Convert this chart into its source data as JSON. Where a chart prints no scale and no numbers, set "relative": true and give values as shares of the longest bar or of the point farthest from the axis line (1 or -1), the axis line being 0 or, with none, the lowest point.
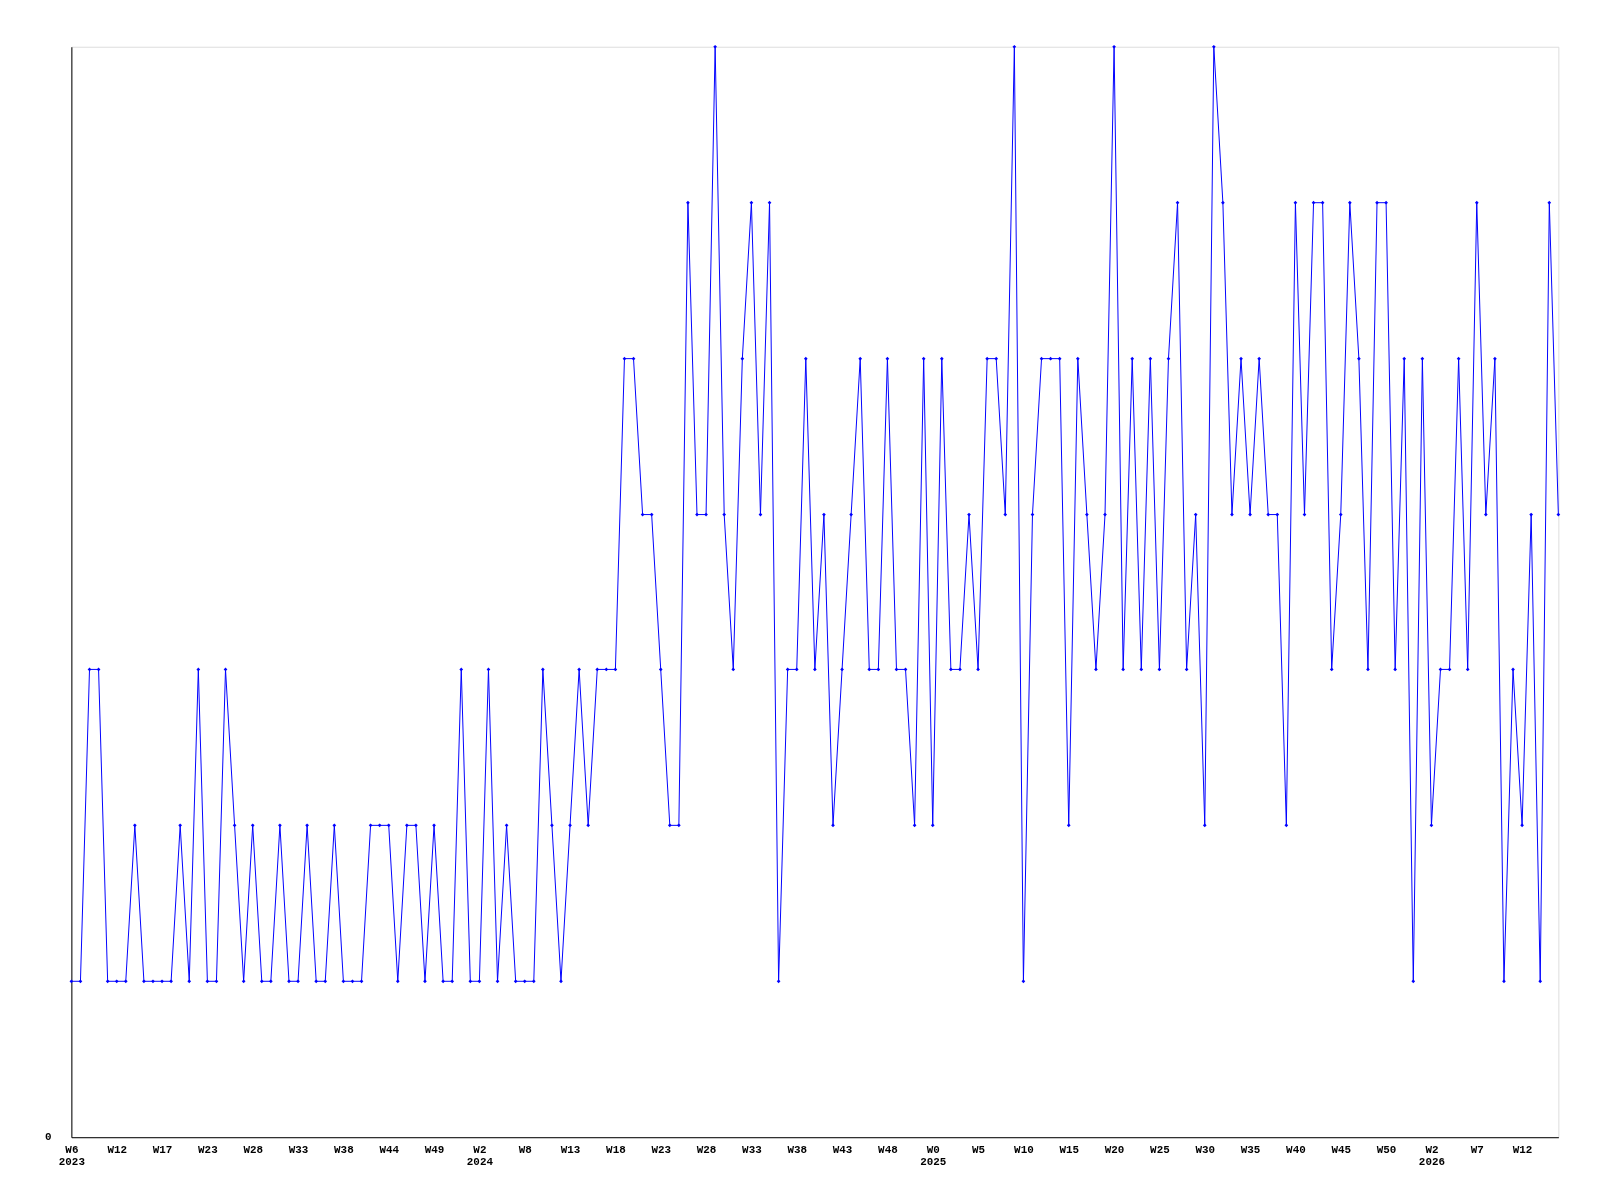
{
  "chart_data": {
    "type": "line",
    "relative": true,
    "marker": "diamond",
    "line_style": "solid",
    "grid": false,
    "categories": [
      "W6\n2023",
      null,
      null,
      null,
      null,
      "W12",
      null,
      null,
      null,
      null,
      "W17",
      null,
      null,
      null,
      null,
      "W23",
      null,
      null,
      null,
      null,
      "W28",
      null,
      null,
      null,
      null,
      "W33",
      null,
      null,
      null,
      null,
      "W38",
      null,
      null,
      null,
      null,
      "W44",
      null,
      null,
      null,
      null,
      "W49",
      null,
      null,
      null,
      null,
      "W2\n2024",
      null,
      null,
      null,
      null,
      "W8",
      null,
      null,
      null,
      null,
      "W13",
      null,
      null,
      null,
      null,
      "W18",
      null,
      null,
      null,
      null,
      "W23",
      null,
      null,
      null,
      null,
      "W28",
      null,
      null,
      null,
      null,
      "W33",
      null,
      null,
      null,
      null,
      "W38",
      null,
      null,
      null,
      null,
      "W43",
      null,
      null,
      null,
      null,
      "W48",
      null,
      null,
      null,
      null,
      "W0\n2025",
      null,
      null,
      null,
      null,
      "W5",
      null,
      null,
      null,
      null,
      "W10",
      null,
      null,
      null,
      null,
      "W15",
      null,
      null,
      null,
      null,
      "W20",
      null,
      null,
      null,
      null,
      "W25",
      null,
      null,
      null,
      null,
      "W30",
      null,
      null,
      null,
      null,
      "W35",
      null,
      null,
      null,
      null,
      "W40",
      null,
      null,
      null,
      null,
      "W45",
      null,
      null,
      null,
      null,
      "W50",
      null,
      null,
      null,
      null,
      "W2\n2026",
      null,
      null,
      null,
      null,
      "W7",
      null,
      null,
      null,
      null,
      "W12",
      null,
      null,
      null,
      null
    ],
    "series": [
      {
        "color": "#0000ff",
        "values": [
          0.143,
          0.143,
          0.429,
          0.429,
          0.143,
          0.143,
          0.143,
          0.286,
          0.143,
          0.143,
          0.143,
          0.143,
          0.286,
          0.143,
          0.429,
          0.143,
          0.143,
          0.429,
          0.286,
          0.143,
          0.286,
          0.143,
          0.143,
          0.286,
          0.143,
          0.143,
          0.286,
          0.143,
          0.143,
          0.286,
          0.143,
          0.143,
          0.143,
          0.286,
          0.286,
          0.286,
          0.143,
          0.286,
          0.286,
          0.143,
          0.286,
          0.143,
          0.143,
          0.429,
          0.143,
          0.143,
          0.429,
          0.143,
          0.286,
          0.143,
          0.143,
          0.143,
          0.429,
          0.286,
          0.143,
          0.286,
          0.429,
          0.286,
          0.429,
          0.429,
          0.429,
          0.714,
          0.714,
          0.571,
          0.571,
          0.429,
          0.286,
          0.286,
          0.857,
          0.571,
          0.571,
          1,
          0.571,
          0.429,
          0.714,
          0.857,
          0.571,
          0.857,
          0.143,
          0.429,
          0.429,
          0.714,
          0.429,
          0.571,
          0.286,
          0.429,
          0.571,
          0.714,
          0.429,
          0.429,
          0.714,
          0.429,
          0.429,
          0.286,
          0.714,
          0.286,
          0.714,
          0.429,
          0.429,
          0.571,
          0.429,
          0.714,
          0.714,
          0.571,
          1,
          0.143,
          0.571,
          0.714,
          0.714,
          0.714,
          0.286,
          0.714,
          0.571,
          0.429,
          0.571,
          1,
          0.429,
          0.714,
          0.429,
          0.714,
          0.429,
          0.714,
          0.857,
          0.429,
          0.571,
          0.286,
          1,
          0.857,
          0.571,
          0.714,
          0.571,
          0.714,
          0.571,
          0.571,
          0.286,
          0.857,
          0.571,
          0.857,
          0.857,
          0.429,
          0.571,
          0.857,
          0.714,
          0.429,
          0.857,
          0.857,
          0.429,
          0.714,
          0.143,
          0.714,
          0.286,
          0.429,
          0.429,
          0.714,
          0.429,
          0.857,
          0.571,
          0.714,
          0.143,
          0.429,
          0.286,
          0.571,
          0.143,
          0.857,
          0.571
        ]
      }
    ],
    "annotations": [
      "0"
    ]
  }
}
